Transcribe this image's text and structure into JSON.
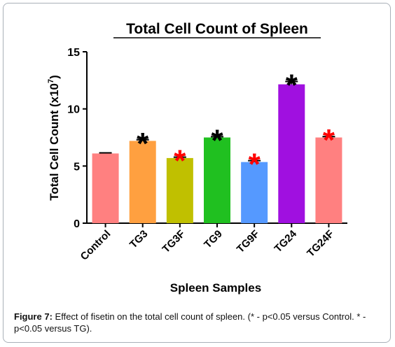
{
  "caption": {
    "label": "Figure 7:",
    "text": "Effect of fisetin on the total cell count of spleen. (* - p<0.05 versus Control. * - p<0.05 versus TG)."
  },
  "colors": {
    "star_black": "#000000",
    "star_red": "#ff0000"
  },
  "chart_data": {
    "type": "bar",
    "title": "Total Cell Count of Spleen",
    "xlabel": "Spleen Samples",
    "ylabel": "Total Cell  Count (x10",
    "ylabel_sup": "7",
    "ylabel_close": ")",
    "ylim": [
      0,
      15
    ],
    "yticks": [
      0,
      5,
      10,
      15
    ],
    "ytick_labels": [
      "0",
      "5",
      "10",
      "15"
    ],
    "grid": false,
    "categories": [
      "Control",
      "TG3",
      "TG3F",
      "TG9",
      "TG9F",
      "TG24",
      "TG24F"
    ],
    "values": [
      6.1,
      7.2,
      5.7,
      7.5,
      5.35,
      12.15,
      7.5
    ],
    "errors": [
      0.05,
      0.1,
      0.08,
      0.07,
      0.12,
      0.25,
      0.08
    ],
    "bar_colors": [
      "#ff8080",
      "#ffa040",
      "#c0c000",
      "#20c020",
      "#5599ff",
      "#a010e0",
      "#ff8080"
    ],
    "markers": [
      "",
      "*",
      "*",
      "*",
      "*",
      "*",
      "*"
    ],
    "marker_colors": [
      "",
      "#000000",
      "#ff0000",
      "#000000",
      "#ff0000",
      "#000000",
      "#ff0000"
    ]
  }
}
